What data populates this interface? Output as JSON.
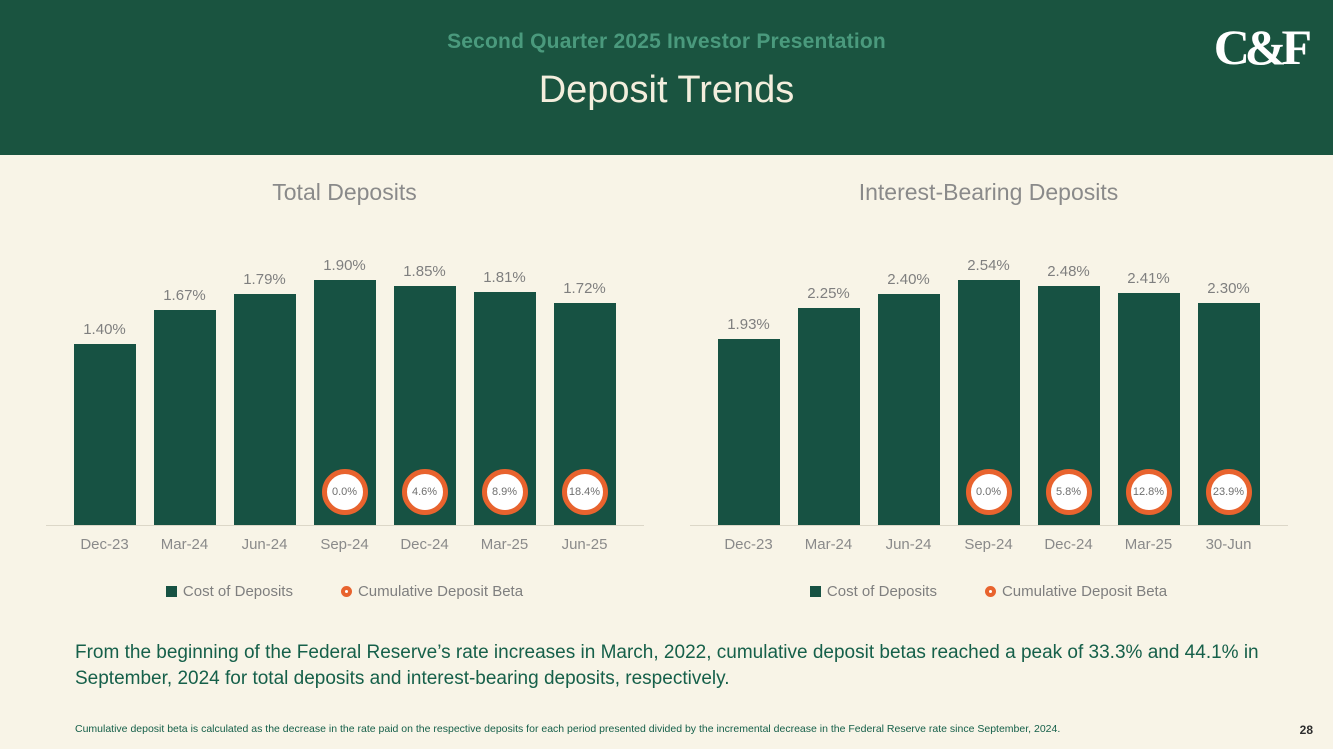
{
  "header": {
    "subtitle": "Second Quarter 2025 Investor Presentation",
    "title": "Deposit Trends",
    "logo_text": "C&F"
  },
  "chart_data": [
    {
      "type": "bar",
      "title": "Total Deposits",
      "categories": [
        "Dec-23",
        "Mar-24",
        "Jun-24",
        "Sep-24",
        "Dec-24",
        "Mar-25",
        "Jun-25"
      ],
      "series": [
        {
          "name": "Cost of Deposits",
          "values": [
            1.4,
            1.67,
            1.79,
            1.9,
            1.85,
            1.81,
            1.72
          ],
          "labels": [
            "1.40%",
            "1.67%",
            "1.79%",
            "1.90%",
            "1.85%",
            "1.81%",
            "1.72%"
          ]
        },
        {
          "name": "Cumulative Deposit Beta",
          "values": [
            null,
            null,
            null,
            0.0,
            4.6,
            8.9,
            18.4
          ],
          "labels": [
            "",
            "",
            "",
            "0.0%",
            "4.6%",
            "8.9%",
            "18.4%"
          ]
        }
      ],
      "ylim": [
        0,
        2.0
      ],
      "grid": false,
      "legend_position": "bottom"
    },
    {
      "type": "bar",
      "title": "Interest-Bearing Deposits",
      "categories": [
        "Dec-23",
        "Mar-24",
        "Jun-24",
        "Sep-24",
        "Dec-24",
        "Mar-25",
        "30-Jun"
      ],
      "series": [
        {
          "name": "Cost of Deposits",
          "values": [
            1.93,
            2.25,
            2.4,
            2.54,
            2.48,
            2.41,
            2.3
          ],
          "labels": [
            "1.93%",
            "2.25%",
            "2.40%",
            "2.54%",
            "2.48%",
            "2.41%",
            "2.30%"
          ]
        },
        {
          "name": "Cumulative Deposit Beta",
          "values": [
            null,
            null,
            null,
            0.0,
            5.8,
            12.8,
            23.9
          ],
          "labels": [
            "",
            "",
            "",
            "0.0%",
            "5.8%",
            "12.8%",
            "23.9%"
          ]
        }
      ],
      "ylim": [
        0,
        2.6
      ],
      "grid": false,
      "legend_position": "bottom"
    }
  ],
  "summary": "From the beginning of the Federal Reserve’s rate increases in March, 2022, cumulative deposit betas reached a peak of 33.3% and 44.1% in September, 2024 for total deposits and interest-bearing deposits, respectively.",
  "footnote": "Cumulative deposit beta is calculated as the decrease in the rate paid on the respective deposits for each period presented divided by the incremental decrease in the Federal Reserve rate since September, 2024.",
  "page_number": "28",
  "colors": {
    "header_bg": "#1a5440",
    "page_bg": "#f8f4e7",
    "bar": "#175243",
    "beta_ring": "#e8632e",
    "title_text": "#f3eedd",
    "subtitle_text": "#4a9a7d",
    "summary_green": "#16604a"
  }
}
